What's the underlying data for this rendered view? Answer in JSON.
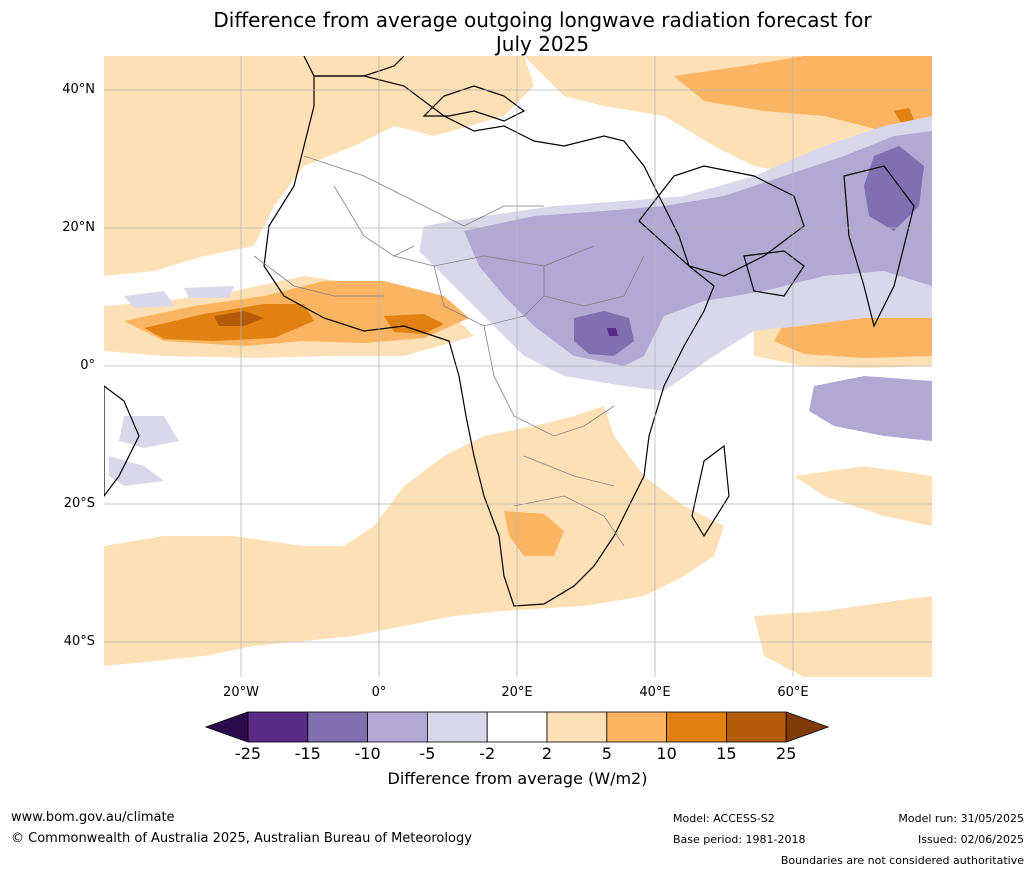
{
  "title_line1": "Difference from average outgoing longwave radiation forecast for",
  "title_line2": "July 2025",
  "lat_labels": [
    "40°N",
    "20°N",
    "0°",
    "20°S",
    "40°S"
  ],
  "lon_labels": [
    "20°W",
    "0°",
    "20°E",
    "40°E",
    "60°E"
  ],
  "colorbar": {
    "title": "Difference from average (W/m2)",
    "ticks": [
      "-25",
      "-15",
      "-10",
      "-5",
      "-2",
      "2",
      "5",
      "10",
      "15",
      "25"
    ],
    "colors": [
      "#2d0a4e",
      "#5a2a87",
      "#8070b0",
      "#b1a8d4",
      "#d9d8eb",
      "#ffffff",
      "#fde0b5",
      "#fab462",
      "#e08112",
      "#b45a0b",
      "#7f3b08"
    ]
  },
  "footer": {
    "website": "www.bom.gov.au/climate",
    "copyright": "© Commonwealth of Australia 2025, Australian Bureau of Meteorology",
    "model": "Model: ACCESS-S2",
    "base_period": "Base period: 1981-2018",
    "model_run": "Model run: 31/05/2025",
    "issued": "Issued: 02/06/2025",
    "boundaries": "Boundaries are not considered authoritative"
  }
}
